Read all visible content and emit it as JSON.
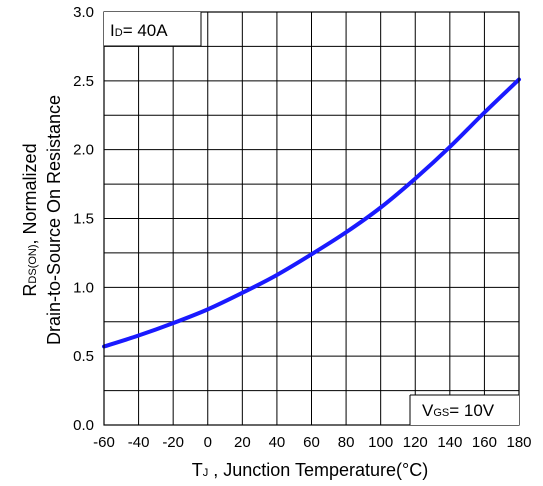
{
  "chart_data": {
    "type": "line",
    "x": [
      -60,
      -40,
      -20,
      0,
      20,
      40,
      60,
      80,
      100,
      120,
      140,
      160,
      180
    ],
    "series": [
      {
        "values": [
          0.57,
          0.65,
          0.74,
          0.84,
          0.96,
          1.09,
          1.24,
          1.4,
          1.58,
          1.79,
          2.02,
          2.27,
          2.51
        ]
      }
    ],
    "xlim": [
      -60,
      180
    ],
    "ylim": [
      0.0,
      3.0
    ],
    "x_ticks": [
      "-60",
      "-40",
      "-20",
      "0",
      "20",
      "40",
      "60",
      "80",
      "100",
      "120",
      "140",
      "160",
      "180"
    ],
    "y_ticks": [
      "0.0",
      "0.5",
      "1.0",
      "1.5",
      "2.0",
      "2.5",
      "3.0"
    ],
    "grid": true,
    "line_color": "#1a1aff",
    "xlabel": {
      "main": "T",
      "sub": "J",
      "rest": " , Junction Temperature(°C)"
    },
    "ylabel": {
      "line1_main": "R",
      "line1_sub": "DS(ON)",
      "line1_rest": ", Normalized",
      "line2": "Drain-to-Source On Resistance"
    },
    "annotations": {
      "id_main": "I",
      "id_sub": "D",
      "id_rest": "= 40A",
      "vgs_main": "V",
      "vgs_sub": "GS",
      "vgs_rest": "= 10V"
    }
  }
}
